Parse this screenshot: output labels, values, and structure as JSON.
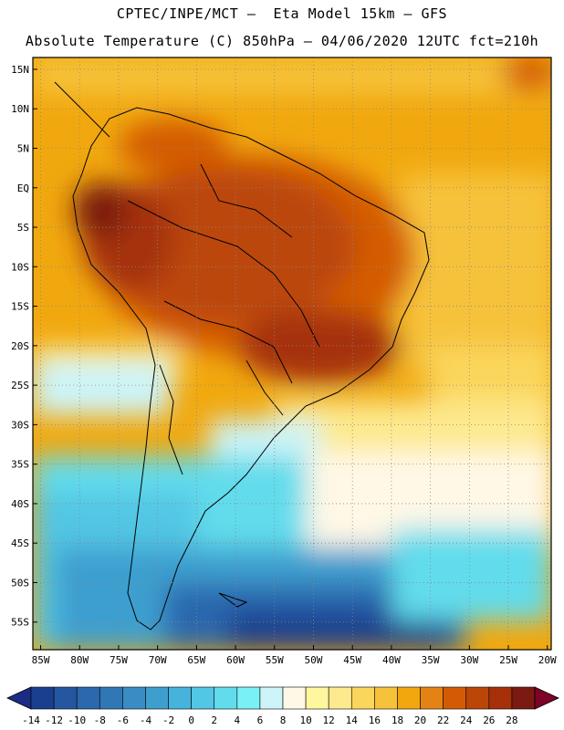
{
  "header": {
    "line1": "CPTEC/INPE/MCT –  Eta Model 15km – GFS",
    "line2": "Absolute Temperature (C) 850hPa – 04/06/2020 12UTC fct=210h"
  },
  "map": {
    "lat_labels": [
      "15N",
      "10N",
      "5N",
      "EQ",
      "5S",
      "10S",
      "15S",
      "20S",
      "25S",
      "30S",
      "35S",
      "40S",
      "45S",
      "50S",
      "55S"
    ],
    "lon_labels": [
      "85W",
      "80W",
      "75W",
      "70W",
      "65W",
      "60W",
      "55W",
      "50W",
      "45W",
      "40W",
      "35W",
      "30W",
      "25W",
      "20W"
    ],
    "lat_range": [
      -58.5,
      16.5
    ],
    "lon_range": [
      -86,
      -19.5
    ],
    "grid": true
  },
  "colorbar": {
    "labels": [
      "-14",
      "-12",
      "-10",
      "-8",
      "-6",
      "-4",
      "-2",
      "0",
      "2",
      "4",
      "6",
      "8",
      "10",
      "12",
      "14",
      "16",
      "18",
      "20",
      "22",
      "24",
      "26",
      "28"
    ],
    "colors": [
      "#1a3f8f",
      "#2556a0",
      "#2b68ad",
      "#3078b5",
      "#3a8cc4",
      "#3e9fcf",
      "#46b3dc",
      "#52c6e4",
      "#62dcec",
      "#78f0f4",
      "#cdf4f8",
      "#fff8e6",
      "#fef79d",
      "#fde98e",
      "#fbd65c",
      "#f6c23a",
      "#f1a80e",
      "#e48314",
      "#d45b06",
      "#bb4608",
      "#a53009",
      "#7a1a10"
    ],
    "under_color": "#1b2c86",
    "over_color": "#7d0327"
  }
}
